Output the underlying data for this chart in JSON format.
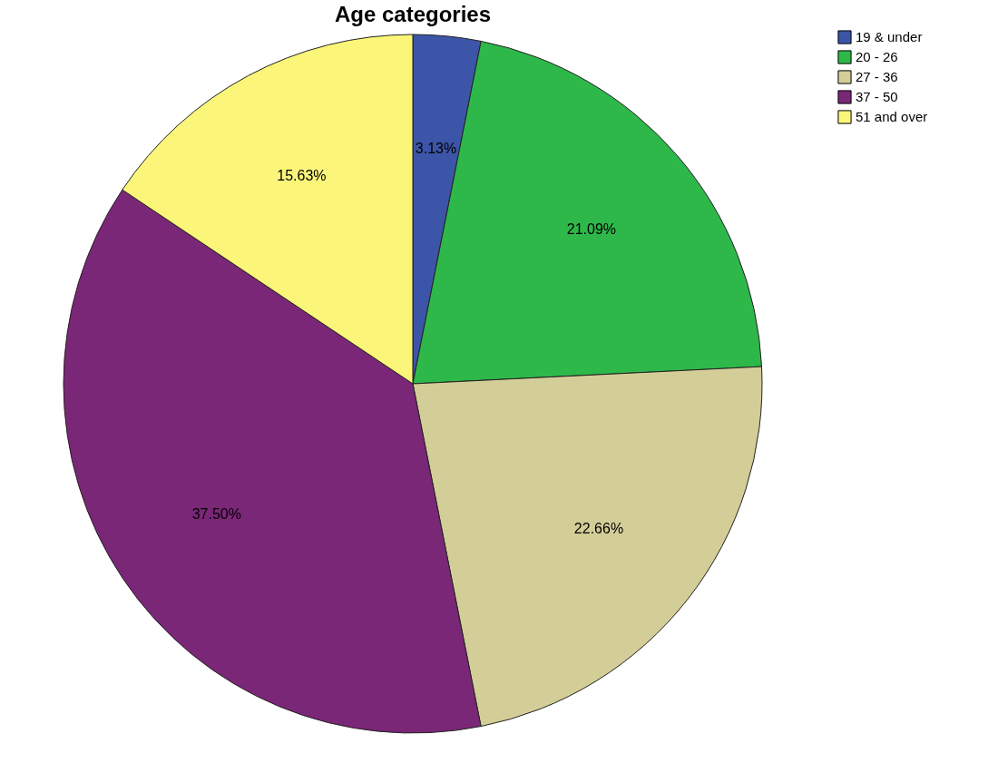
{
  "chart_data": {
    "type": "pie",
    "title": "Age categories",
    "categories": [
      "19 & under",
      "20 - 26",
      "27 - 36",
      "37 - 50",
      "51 and over"
    ],
    "values": [
      3.13,
      21.09,
      22.66,
      37.5,
      15.63
    ],
    "colors": [
      "#3c55a8",
      "#2eb84a",
      "#d3cd98",
      "#7b2777",
      "#fbf57a"
    ],
    "value_labels": [
      "3.13%",
      "21.09%",
      "22.66%",
      "37.50%",
      "15.63%"
    ],
    "legend": "top right"
  }
}
